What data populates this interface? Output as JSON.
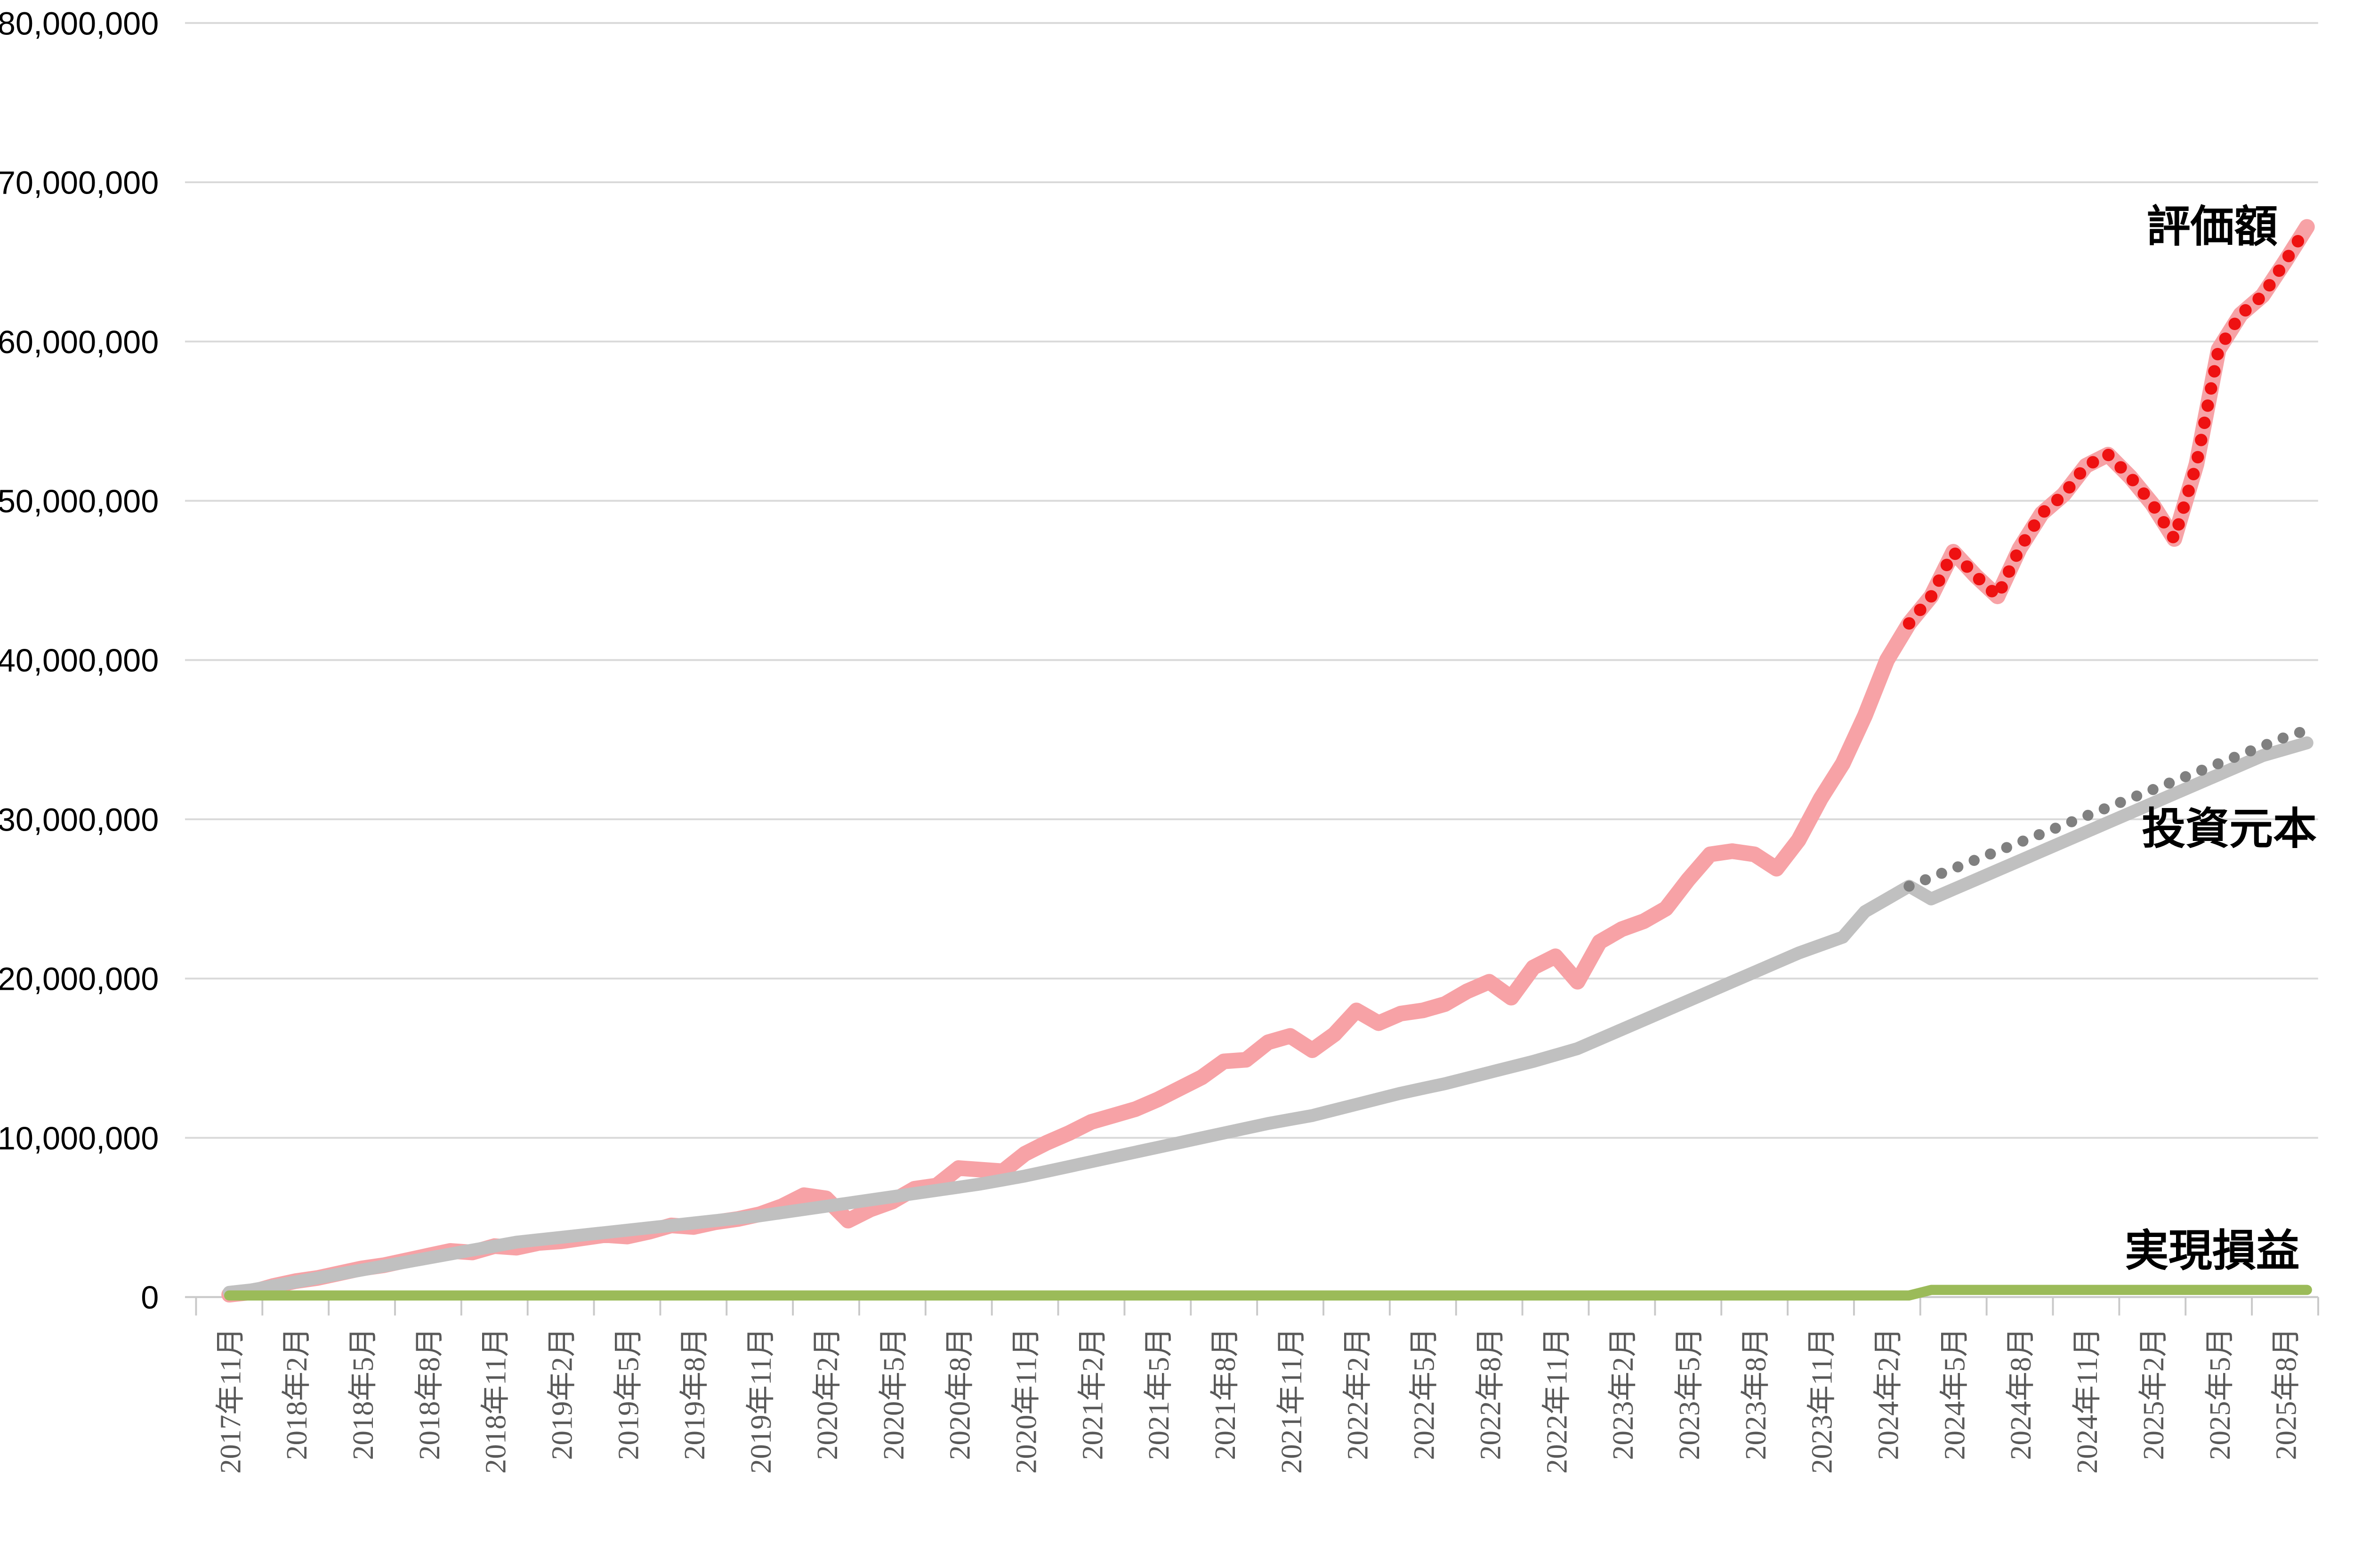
{
  "chart_data": {
    "type": "line",
    "title": "",
    "grid": "horizontal",
    "background": "#FFFFFF",
    "legend_position": "inline-labels-right",
    "y_axis": {
      "min": 0,
      "max": 80000000,
      "step": 10000000,
      "tick_labels": [
        "0",
        "10,000,000",
        "20,000,000",
        "30,000,000",
        "40,000,000",
        "50,000,000",
        "60,000,000",
        "70,000,000",
        "80,000,000"
      ]
    },
    "x_axis": {
      "tick_labels": [
        "2017年11月",
        "2018年2月",
        "2018年5月",
        "2018年8月",
        "2018年11月",
        "2019年2月",
        "2019年5月",
        "2019年8月",
        "2019年11月",
        "2020年2月",
        "2020年5月",
        "2020年8月",
        "2020年11月",
        "2021年2月",
        "2021年5月",
        "2021年8月",
        "2021年11月",
        "2022年2月",
        "2022年5月",
        "2022年8月",
        "2022年11月",
        "2023年2月",
        "2023年5月",
        "2023年8月",
        "2023年11月",
        "2024年2月",
        "2024年5月",
        "2024年8月",
        "2024年11月",
        "2025年2月",
        "2025年5月",
        "2025年8月"
      ],
      "points_per_label_interval": 3,
      "total_points": 95
    },
    "annotations": [
      {
        "text": "評価額",
        "color": "#000000"
      },
      {
        "text": "投資元本",
        "color": "#000000"
      },
      {
        "text": "実現損益",
        "color": "#000000"
      }
    ],
    "colors": {
      "gridline": "#D9D9D9",
      "axis": "#C9C9C9",
      "x_label": "#595959",
      "y_label": "#000000"
    },
    "series": [
      {
        "name": "評価額",
        "color": "#F7A2A6",
        "style": "solid",
        "start_index": 0,
        "values": [
          150000,
          300000,
          700000,
          1000000,
          1200000,
          1500000,
          1800000,
          2000000,
          2300000,
          2600000,
          2900000,
          2800000,
          3200000,
          3100000,
          3400000,
          3500000,
          3700000,
          3900000,
          3800000,
          4100000,
          4500000,
          4400000,
          4700000,
          4900000,
          5200000,
          5700000,
          6400000,
          6200000,
          4800000,
          5500000,
          6000000,
          6800000,
          7000000,
          8100000,
          8000000,
          7900000,
          9000000,
          9700000,
          10300000,
          11000000,
          11400000,
          11800000,
          12400000,
          13100000,
          13800000,
          14800000,
          14900000,
          16000000,
          16400000,
          15500000,
          16500000,
          18000000,
          17200000,
          17800000,
          18000000,
          18400000,
          19200000,
          19800000,
          18800000,
          20700000,
          21400000,
          19800000,
          22300000,
          23100000,
          23600000,
          24400000,
          26200000,
          27800000,
          28000000,
          27800000,
          26900000,
          28700000,
          31300000,
          33500000,
          36500000,
          40000000,
          42300000,
          44000000,
          46800000,
          45300000,
          44000000,
          47000000,
          49200000,
          50400000,
          52200000,
          52900000,
          51500000,
          49800000,
          47600000,
          52300000,
          59500000,
          61700000,
          62900000,
          65000000,
          67200000
        ]
      },
      {
        "name": "評価額(赤点線部)",
        "color": "#EE1111",
        "style": "dotted",
        "start_index": 76,
        "values": [
          42300000,
          44000000,
          46800000,
          45300000,
          44000000,
          47000000,
          49200000,
          50400000,
          52200000,
          52900000,
          51500000,
          49800000,
          47600000,
          52300000,
          59500000,
          61700000,
          62900000,
          65000000,
          67200000
        ]
      },
      {
        "name": "投資元本",
        "color": "#C0C0C0",
        "style": "solid",
        "start_index": 0,
        "values": [
          300000,
          450000,
          700000,
          950000,
          1200000,
          1450000,
          1700000,
          1950000,
          2200000,
          2450000,
          2700000,
          2950000,
          3200000,
          3450000,
          3600000,
          3750000,
          3900000,
          4050000,
          4200000,
          4350000,
          4500000,
          4650000,
          4800000,
          4950000,
          5100000,
          5300000,
          5500000,
          5700000,
          5900000,
          6100000,
          6300000,
          6500000,
          6700000,
          6900000,
          7100000,
          7350000,
          7600000,
          7900000,
          8200000,
          8500000,
          8800000,
          9100000,
          9400000,
          9700000,
          10000000,
          10300000,
          10600000,
          10900000,
          11150000,
          11400000,
          11750000,
          12100000,
          12450000,
          12800000,
          13100000,
          13400000,
          13750000,
          14100000,
          14450000,
          14800000,
          15200000,
          15600000,
          16200000,
          16800000,
          17400000,
          18000000,
          18600000,
          19200000,
          19800000,
          20400000,
          21000000,
          21600000,
          22100000,
          22600000,
          24200000,
          25000000,
          25800000,
          25000000,
          25600000,
          26200000,
          26800000,
          27400000,
          28000000,
          28600000,
          29200000,
          29800000,
          30400000,
          31000000,
          31600000,
          32200000,
          32800000,
          33400000,
          34000000,
          34400000,
          34800000
        ]
      },
      {
        "name": "投資元本(灰点線部)",
        "color": "#808080",
        "style": "dotted",
        "start_index": 76,
        "values": [
          25800000,
          26350000,
          26900000,
          27450000,
          28000000,
          28550000,
          29100000,
          29650000,
          30200000,
          30750000,
          31300000,
          31850000,
          32400000,
          32950000,
          33500000,
          34050000,
          34600000,
          35150000,
          35600000
        ]
      },
      {
        "name": "実現損益",
        "color": "#9BBB59",
        "style": "solid",
        "start_index": 0,
        "values": [
          100000,
          100000,
          100000,
          100000,
          100000,
          100000,
          100000,
          100000,
          100000,
          100000,
          100000,
          100000,
          100000,
          100000,
          100000,
          100000,
          100000,
          100000,
          100000,
          100000,
          100000,
          100000,
          100000,
          100000,
          100000,
          100000,
          100000,
          100000,
          100000,
          100000,
          100000,
          100000,
          100000,
          100000,
          100000,
          100000,
          100000,
          100000,
          100000,
          100000,
          100000,
          100000,
          100000,
          100000,
          100000,
          100000,
          100000,
          100000,
          100000,
          100000,
          100000,
          100000,
          100000,
          100000,
          100000,
          100000,
          100000,
          100000,
          100000,
          100000,
          100000,
          100000,
          100000,
          100000,
          100000,
          100000,
          100000,
          100000,
          100000,
          100000,
          100000,
          100000,
          100000,
          100000,
          100000,
          100000,
          100000,
          450000,
          450000,
          450000,
          450000,
          450000,
          450000,
          450000,
          450000,
          450000,
          450000,
          450000,
          450000,
          450000,
          450000,
          450000,
          450000,
          450000,
          450000
        ]
      }
    ]
  }
}
